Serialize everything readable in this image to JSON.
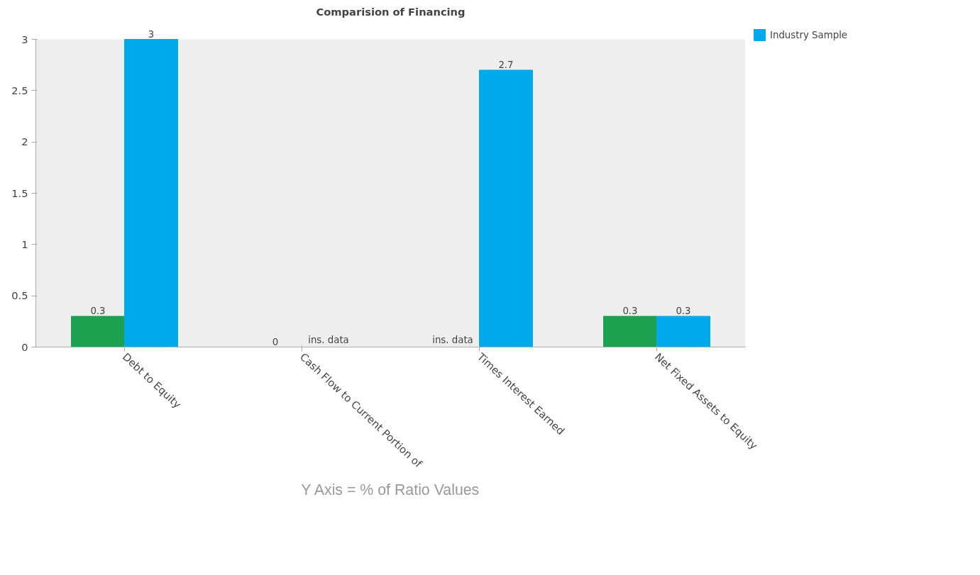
{
  "chart_data": {
    "type": "bar",
    "title": "Comparision of Financing",
    "categories": [
      "Debt to Equity",
      "Cash Flow to Current Portion of",
      "Times Interest Earned",
      "Net Fixed Assets to Equity"
    ],
    "series": [
      {
        "color": "#1ba150",
        "values": [
          0.3,
          0,
          0,
          0.3
        ],
        "value_labels": [
          "0.3",
          "0",
          "ins. data",
          "0.3"
        ]
      },
      {
        "name": "Industry Sample",
        "color": "#00aaeb",
        "values": [
          3,
          0,
          2.7,
          0.3
        ],
        "value_labels": [
          "3",
          "ins. data",
          "2.7",
          "0.3"
        ]
      }
    ],
    "ylim": [
      0,
      3
    ],
    "yticks": [
      0,
      0.5,
      1,
      1.5,
      2,
      2.5,
      3
    ],
    "grid": false,
    "legend": "top right",
    "annotations": [
      "Y Axis = % of Ratio Values"
    ]
  }
}
